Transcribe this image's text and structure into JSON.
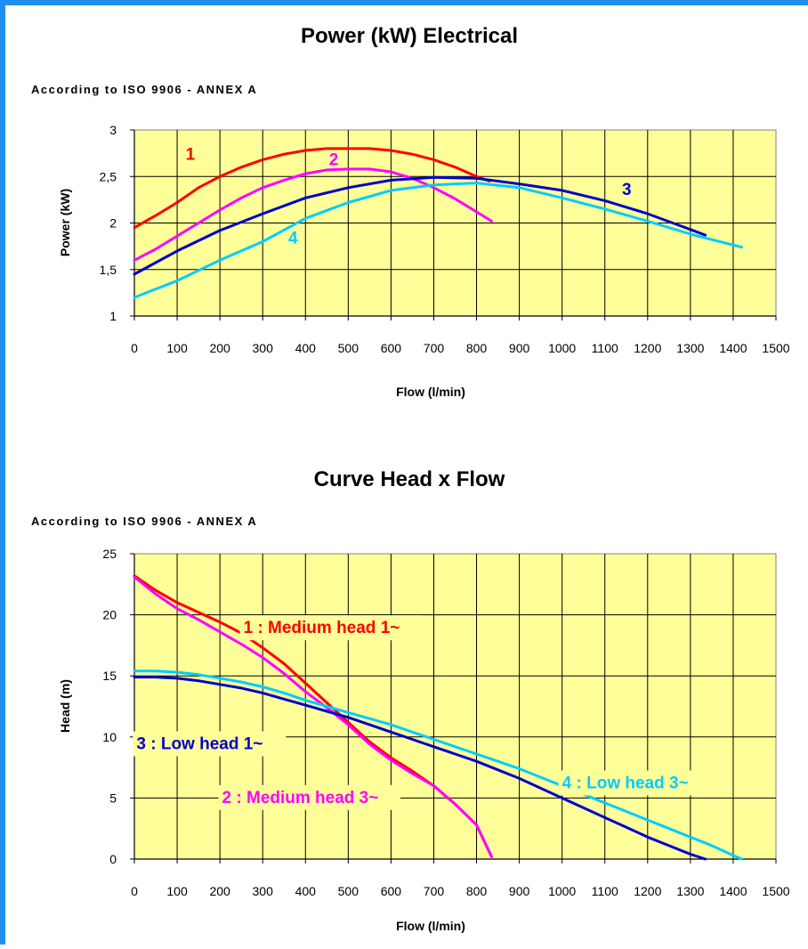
{
  "chart_data": [
    {
      "type": "line",
      "title": "Power (kW) Electrical",
      "subtitle": "According to ISO 9906 - ANNEX A",
      "xlabel": "Flow (l/min)",
      "ylabel": "Power (kW)",
      "xlim": [
        0,
        1500
      ],
      "ylim": [
        1,
        3
      ],
      "x_ticks": [
        "0",
        "100",
        "200",
        "300",
        "400",
        "500",
        "600",
        "700",
        "800",
        "900",
        "1000",
        "1100",
        "1200",
        "1300",
        "1400",
        "1500"
      ],
      "y_ticks": [
        "1",
        "1,5",
        "2",
        "2,5",
        "3"
      ],
      "grid": true,
      "legend": "none",
      "background": "#ffff99",
      "series": [
        {
          "name": "1",
          "color": "#ff0000",
          "points": [
            [
              0,
              1.95
            ],
            [
              50,
              2.08
            ],
            [
              100,
              2.22
            ],
            [
              150,
              2.38
            ],
            [
              200,
              2.5
            ],
            [
              250,
              2.6
            ],
            [
              300,
              2.68
            ],
            [
              350,
              2.74
            ],
            [
              400,
              2.78
            ],
            [
              450,
              2.8
            ],
            [
              500,
              2.8
            ],
            [
              550,
              2.8
            ],
            [
              600,
              2.78
            ],
            [
              650,
              2.74
            ],
            [
              700,
              2.68
            ],
            [
              750,
              2.6
            ],
            [
              800,
              2.5
            ],
            [
              830,
              2.45
            ]
          ]
        },
        {
          "name": "2",
          "color": "#ff00ff",
          "points": [
            [
              0,
              1.6
            ],
            [
              50,
              1.72
            ],
            [
              100,
              1.86
            ],
            [
              150,
              2.0
            ],
            [
              200,
              2.14
            ],
            [
              250,
              2.27
            ],
            [
              300,
              2.38
            ],
            [
              350,
              2.46
            ],
            [
              400,
              2.53
            ],
            [
              450,
              2.57
            ],
            [
              500,
              2.58
            ],
            [
              550,
              2.58
            ],
            [
              600,
              2.55
            ],
            [
              650,
              2.48
            ],
            [
              700,
              2.38
            ],
            [
              750,
              2.26
            ],
            [
              800,
              2.12
            ],
            [
              835,
              2.02
            ]
          ]
        },
        {
          "name": "3",
          "color": "#0000cc",
          "points": [
            [
              0,
              1.45
            ],
            [
              100,
              1.7
            ],
            [
              200,
              1.92
            ],
            [
              300,
              2.1
            ],
            [
              400,
              2.27
            ],
            [
              500,
              2.38
            ],
            [
              600,
              2.46
            ],
            [
              700,
              2.49
            ],
            [
              800,
              2.48
            ],
            [
              900,
              2.42
            ],
            [
              1000,
              2.35
            ],
            [
              1100,
              2.24
            ],
            [
              1200,
              2.1
            ],
            [
              1300,
              1.93
            ],
            [
              1335,
              1.87
            ]
          ]
        },
        {
          "name": "4",
          "color": "#00ccff",
          "points": [
            [
              0,
              1.2
            ],
            [
              100,
              1.38
            ],
            [
              200,
              1.6
            ],
            [
              300,
              1.8
            ],
            [
              400,
              2.05
            ],
            [
              500,
              2.22
            ],
            [
              600,
              2.35
            ],
            [
              700,
              2.41
            ],
            [
              800,
              2.43
            ],
            [
              900,
              2.38
            ],
            [
              1000,
              2.27
            ],
            [
              1100,
              2.15
            ],
            [
              1200,
              2.02
            ],
            [
              1300,
              1.88
            ],
            [
              1420,
              1.74
            ]
          ]
        }
      ],
      "annotations": [
        {
          "text": "1",
          "x": 120,
          "y": 2.68,
          "color": "#ff0000"
        },
        {
          "text": "2",
          "x": 455,
          "y": 2.62,
          "color": "#ff00ff"
        },
        {
          "text": "3",
          "x": 1140,
          "y": 2.3,
          "color": "#0000cc"
        },
        {
          "text": "4",
          "x": 360,
          "y": 1.78,
          "color": "#00ccff"
        }
      ]
    },
    {
      "type": "line",
      "title": "Curve Head x Flow",
      "subtitle": "According to ISO 9906 - ANNEX A",
      "xlabel": "Flow (l/min)",
      "ylabel": "Head (m)",
      "xlim": [
        0,
        1500
      ],
      "ylim": [
        0,
        25
      ],
      "x_ticks": [
        "0",
        "100",
        "200",
        "300",
        "400",
        "500",
        "600",
        "700",
        "800",
        "900",
        "1000",
        "1100",
        "1200",
        "1300",
        "1400",
        "1500"
      ],
      "y_ticks": [
        "0",
        "5",
        "10",
        "15",
        "20",
        "25"
      ],
      "grid": true,
      "legend": "none",
      "background": "#ffff99",
      "series": [
        {
          "name": "1 : Medium head 1~",
          "color": "#ff0000",
          "points": [
            [
              0,
              23.2
            ],
            [
              50,
              22
            ],
            [
              100,
              21
            ],
            [
              150,
              20.2
            ],
            [
              200,
              19.4
            ],
            [
              250,
              18.5
            ],
            [
              300,
              17.3
            ],
            [
              350,
              16
            ],
            [
              400,
              14.4
            ],
            [
              450,
              12.8
            ],
            [
              500,
              11.2
            ],
            [
              550,
              9.6
            ],
            [
              600,
              8.3
            ],
            [
              650,
              7.2
            ],
            [
              700,
              6
            ],
            [
              750,
              4.5
            ],
            [
              800,
              2.8
            ],
            [
              835,
              0.2
            ]
          ]
        },
        {
          "name": "2 : Medium head 3~",
          "color": "#ff00ff",
          "points": [
            [
              0,
              23.1
            ],
            [
              50,
              21.7
            ],
            [
              100,
              20.5
            ],
            [
              150,
              19.6
            ],
            [
              200,
              18.6
            ],
            [
              250,
              17.6
            ],
            [
              300,
              16.5
            ],
            [
              350,
              15.2
            ],
            [
              400,
              13.7
            ],
            [
              450,
              12.4
            ],
            [
              500,
              11
            ],
            [
              550,
              9.4
            ],
            [
              600,
              8.1
            ],
            [
              650,
              7
            ],
            [
              700,
              6
            ],
            [
              750,
              4.5
            ],
            [
              800,
              2.8
            ],
            [
              835,
              0.2
            ]
          ]
        },
        {
          "name": "3 : Low head 1~",
          "color": "#0000cc",
          "points": [
            [
              0,
              14.9
            ],
            [
              50,
              14.9
            ],
            [
              100,
              14.8
            ],
            [
              150,
              14.6
            ],
            [
              200,
              14.3
            ],
            [
              250,
              14
            ],
            [
              300,
              13.6
            ],
            [
              350,
              13.1
            ],
            [
              400,
              12.6
            ],
            [
              450,
              12.1
            ],
            [
              500,
              11.6
            ],
            [
              550,
              11
            ],
            [
              600,
              10.4
            ],
            [
              650,
              9.8
            ],
            [
              700,
              9.2
            ],
            [
              750,
              8.6
            ],
            [
              800,
              8
            ],
            [
              850,
              7.3
            ],
            [
              900,
              6.6
            ],
            [
              950,
              5.8
            ],
            [
              1000,
              5
            ],
            [
              1050,
              4.2
            ],
            [
              1100,
              3.4
            ],
            [
              1150,
              2.6
            ],
            [
              1200,
              1.8
            ],
            [
              1250,
              1.1
            ],
            [
              1300,
              0.4
            ],
            [
              1335,
              0
            ]
          ]
        },
        {
          "name": "4 : Low head 3~",
          "color": "#00ccff",
          "points": [
            [
              0,
              15.4
            ],
            [
              50,
              15.4
            ],
            [
              100,
              15.3
            ],
            [
              150,
              15.1
            ],
            [
              200,
              14.8
            ],
            [
              250,
              14.5
            ],
            [
              300,
              14.1
            ],
            [
              350,
              13.6
            ],
            [
              400,
              13
            ],
            [
              450,
              12.5
            ],
            [
              500,
              12
            ],
            [
              550,
              11.5
            ],
            [
              600,
              11
            ],
            [
              650,
              10.4
            ],
            [
              700,
              9.8
            ],
            [
              750,
              9.2
            ],
            [
              800,
              8.6
            ],
            [
              850,
              8
            ],
            [
              900,
              7.4
            ],
            [
              950,
              6.7
            ],
            [
              1000,
              6
            ],
            [
              1050,
              5.3
            ],
            [
              1100,
              4.6
            ],
            [
              1150,
              3.9
            ],
            [
              1200,
              3.2
            ],
            [
              1250,
              2.5
            ],
            [
              1300,
              1.8
            ],
            [
              1350,
              1.1
            ],
            [
              1400,
              0.3
            ],
            [
              1420,
              0
            ]
          ]
        }
      ],
      "annotations": [
        {
          "text": "1 : Medium head 1~",
          "x": 255,
          "y": 18.5,
          "color": "#ff0000",
          "boxed": true
        },
        {
          "text": "3 : Low head 1~",
          "x": 5,
          "y": 9.0,
          "color": "#0000cc",
          "boxed": true
        },
        {
          "text": "2 : Medium head 3~",
          "x": 205,
          "y": 4.6,
          "color": "#ff00ff",
          "boxed": true
        },
        {
          "text": "4 : Low head 3~",
          "x": 1000,
          "y": 5.8,
          "color": "#00ccff",
          "boxed": true
        }
      ]
    }
  ]
}
